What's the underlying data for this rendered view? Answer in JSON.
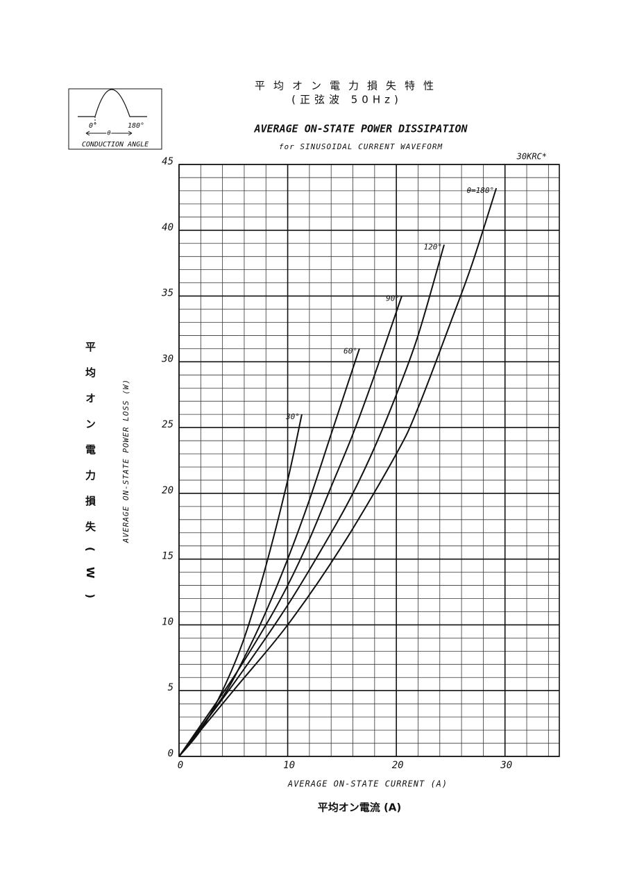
{
  "chart_data": {
    "type": "line",
    "title_jp": "平均オン電力損失特性",
    "subtitle_jp": "(正弦波 50Hz)",
    "title": "AVERAGE ON-STATE POWER DISSIPATION",
    "subtitle": "for SINUSOIDAL CURRENT WAVEFORM",
    "model": "30KRC*",
    "inset": {
      "left": "0°",
      "right": "180°",
      "theta": "θ",
      "caption": "CONDUCTION ANGLE"
    },
    "ylabel": "AVERAGE ON-STATE POWER LOSS (W)",
    "ylabel_jp": "平均オン電力損失(W)",
    "xlabel": "AVERAGE ON-STATE CURRENT (A)",
    "xlabel_jp": "平均オン電流 (A)",
    "xlim": [
      0,
      35
    ],
    "ylim": [
      0,
      45
    ],
    "xticks": [
      0,
      10,
      20,
      30
    ],
    "yticks": [
      0,
      5,
      10,
      15,
      20,
      25,
      30,
      35,
      40,
      45
    ],
    "grid": true,
    "series": [
      {
        "name": "θ=180°",
        "color": "#111111",
        "x": [
          0,
          5,
          10,
          15,
          20,
          22,
          25,
          27,
          29.2
        ],
        "values": [
          0,
          5,
          10,
          16,
          23,
          26.5,
          33,
          37.5,
          43.2
        ]
      },
      {
        "name": "120°",
        "color": "#111111",
        "x": [
          0,
          5,
          10,
          14,
          16,
          18,
          20,
          22,
          24.4
        ],
        "values": [
          0,
          5.5,
          11.5,
          17,
          20,
          23.5,
          27.5,
          32,
          38.9
        ]
      },
      {
        "name": "90°",
        "color": "#111111",
        "x": [
          0,
          5,
          8,
          10,
          12,
          14,
          16,
          18,
          20.5
        ],
        "values": [
          0,
          6,
          10,
          13,
          16.5,
          20.5,
          24.5,
          29,
          35
        ]
      },
      {
        "name": "60°",
        "color": "#111111",
        "x": [
          0,
          4,
          6,
          8,
          10,
          12,
          14,
          16.6
        ],
        "values": [
          0,
          4.5,
          7.5,
          11,
          15,
          19.5,
          24.5,
          31
        ]
      },
      {
        "name": "30°",
        "color": "#111111",
        "x": [
          0,
          2,
          4,
          6,
          8,
          10,
          11.3
        ],
        "values": [
          0,
          2,
          5,
          9,
          14.5,
          21,
          26
        ]
      }
    ]
  }
}
